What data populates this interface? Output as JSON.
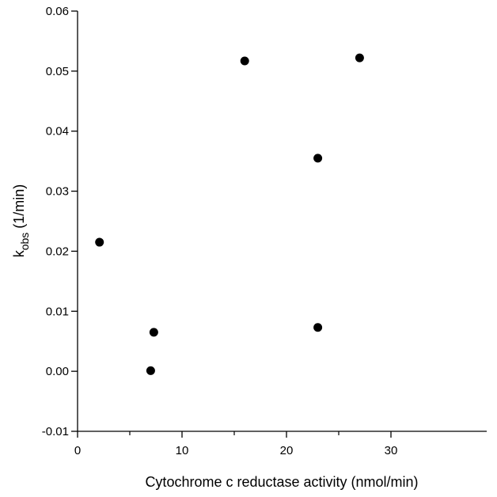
{
  "chart_data": {
    "type": "scatter",
    "xlabel": "Cytochrome c reductase activity (nmol/min)",
    "ylabel": {
      "main": "k",
      "subscript": "obs",
      "unit": " (1/min)"
    },
    "xlim": [
      0,
      35
    ],
    "ylim": [
      -0.01,
      0.06
    ],
    "x_major_ticks": [
      0,
      10,
      20,
      30
    ],
    "x_tick_labels": [
      "0",
      "10",
      "20",
      "30"
    ],
    "x_minor_ticks": [
      5,
      15,
      25
    ],
    "y_ticks": [
      -0.01,
      0.0,
      0.01,
      0.02,
      0.03,
      0.04,
      0.05,
      0.06
    ],
    "y_tick_labels": [
      "-0.01",
      "0.00",
      "0.01",
      "0.02",
      "0.03",
      "0.04",
      "0.05",
      "0.06"
    ],
    "grid": false,
    "marker_color": "#000000",
    "points": [
      {
        "x": 2.1,
        "y": 0.0215
      },
      {
        "x": 7.0,
        "y": 0.0001
      },
      {
        "x": 7.3,
        "y": 0.0065
      },
      {
        "x": 16.0,
        "y": 0.0517
      },
      {
        "x": 23.0,
        "y": 0.0355
      },
      {
        "x": 23.0,
        "y": 0.0073
      },
      {
        "x": 27.0,
        "y": 0.0522
      }
    ]
  }
}
